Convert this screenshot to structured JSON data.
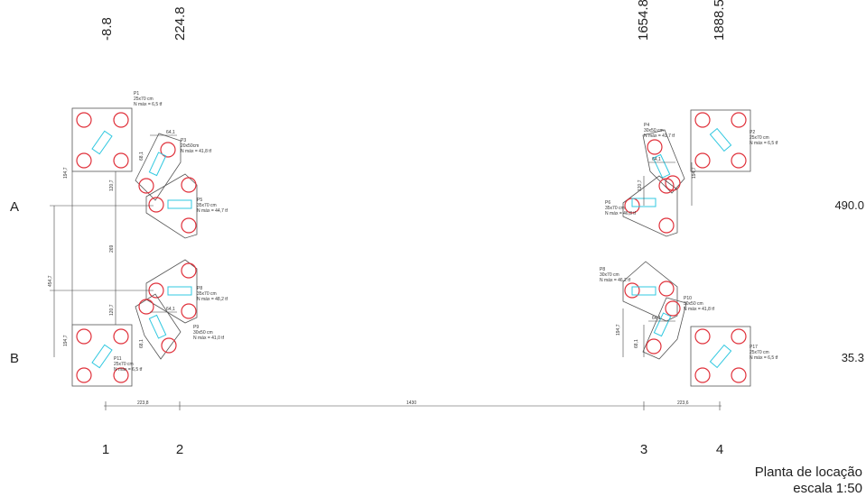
{
  "header": {
    "columns_top": [
      "-8.8",
      "224.8",
      "1654.8",
      "1888.5"
    ]
  },
  "rows": [
    {
      "label": "A",
      "value": "490.0"
    },
    {
      "label": "B",
      "value": "35.3"
    }
  ],
  "columns_bottom": [
    "1",
    "2",
    "3",
    "4"
  ],
  "caps": [
    {
      "label": "P1",
      "size": "25x70 cm",
      "load": "N máx = 6,5 tf"
    },
    {
      "label": "P3",
      "size": "20x50cm",
      "load": "N máx = 41,8 tf"
    },
    {
      "label": "P5",
      "size": "35x70 cm",
      "load": "N máx = 44,7 tf"
    },
    {
      "label": "P8",
      "size": "35x70 cm",
      "load": "N máx = 48,2 tf"
    },
    {
      "label": "P9",
      "size": "30x50 cm",
      "load": "N máx = 41,0 tf"
    },
    {
      "label": "P11",
      "size": "25x70 cm",
      "load": "N máx = 6,5 tf"
    },
    {
      "label": "P2",
      "size": "25x70 cm",
      "load": "N máx = 6,5 tf"
    },
    {
      "label": "P4",
      "size": "30x50 cm",
      "load": "N máx = 41,7 tf"
    },
    {
      "label": "P6",
      "size": "35x70 cm",
      "load": "N máx = 46,8 tf"
    },
    {
      "label": "P8",
      "size": "30x70 cm",
      "load": "N máx = 46,2 tf"
    },
    {
      "label": "P10",
      "size": "30x50 cm",
      "load": "N máx = 41,8 tf"
    },
    {
      "label": "P17",
      "size": "25x70 cm",
      "load": "N máx = 6,5 tf"
    }
  ],
  "dimensions": [
    "64,1",
    "68,1",
    "194,7",
    "120,7",
    "269",
    "454,7",
    "194,7",
    "120,7",
    "64,1",
    "68,1",
    "64,1",
    "120,7",
    "194,7",
    "64,1",
    "68,1",
    "194,7",
    "223,8",
    "1430",
    "223,6"
  ],
  "footer": {
    "title": "Planta de locação",
    "scale": "escala 1:50"
  }
}
